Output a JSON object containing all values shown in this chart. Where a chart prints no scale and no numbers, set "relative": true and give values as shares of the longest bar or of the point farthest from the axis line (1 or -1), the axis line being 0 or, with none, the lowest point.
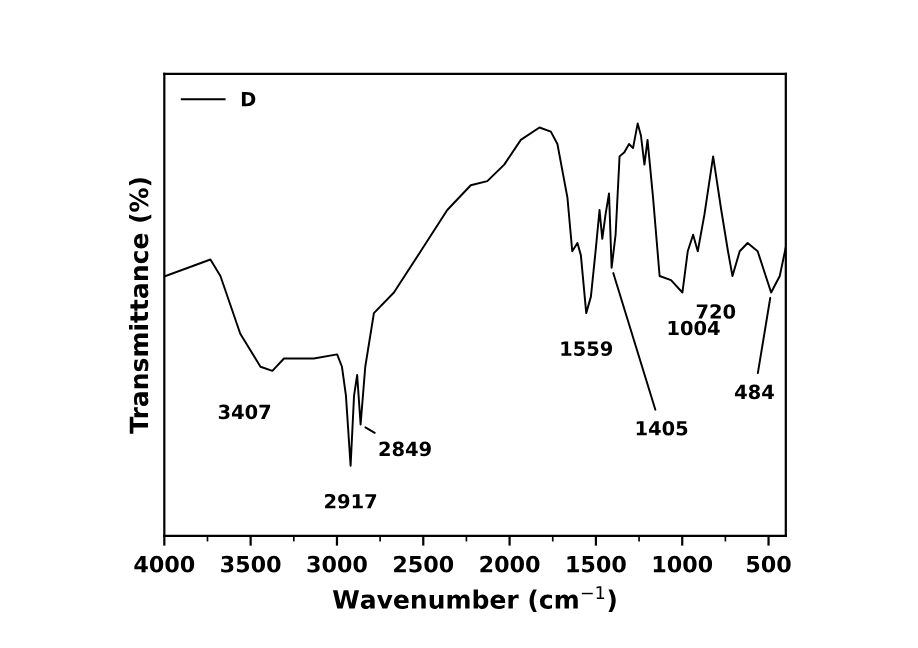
{
  "chart_data": {
    "type": "line",
    "relative": true,
    "xlabel": "Wavenumber (cm$^{−1}$)",
    "ylabel": "Transmittance (%)",
    "xlim": [
      4000,
      400
    ],
    "xticks": [
      4000,
      3500,
      3000,
      2500,
      2000,
      1500,
      1000,
      500
    ],
    "tick_labels": "x",
    "legend": "top left",
    "grid": false,
    "marker": "none",
    "line_style": "solid",
    "series": [
      {
        "name": "D",
        "color": "#000000",
        "x": [
          3992,
          3733,
          3675,
          3560,
          3443,
          3374,
          3307,
          3134,
          2999,
          2971,
          2948,
          2921,
          2901,
          2883,
          2863,
          2836,
          2786,
          2670,
          2515,
          2361,
          2225,
          2129,
          2031,
          1935,
          1827,
          1761,
          1723,
          1665,
          1637,
          1607,
          1587,
          1556,
          1529,
          1502,
          1479,
          1463,
          1444,
          1424,
          1409,
          1386,
          1363,
          1335,
          1308,
          1285,
          1258,
          1239,
          1219,
          1201,
          1169,
          1131,
          1065,
          999,
          968,
          937,
          910,
          871,
          821,
          774,
          735,
          709,
          667,
          621,
          563,
          485,
          435,
          400
        ],
        "values": [
          0.63,
          0.67,
          0.63,
          0.49,
          0.41,
          0.4,
          0.43,
          0.43,
          0.44,
          0.41,
          0.34,
          0.17,
          0.34,
          0.39,
          0.27,
          0.41,
          0.54,
          0.59,
          0.69,
          0.79,
          0.85,
          0.86,
          0.9,
          0.96,
          0.99,
          0.98,
          0.95,
          0.82,
          0.69,
          0.71,
          0.68,
          0.54,
          0.58,
          0.69,
          0.79,
          0.72,
          0.78,
          0.83,
          0.65,
          0.73,
          0.92,
          0.93,
          0.95,
          0.94,
          1.0,
          0.97,
          0.9,
          0.96,
          0.82,
          0.63,
          0.62,
          0.59,
          0.69,
          0.73,
          0.69,
          0.78,
          0.92,
          0.79,
          0.69,
          0.63,
          0.69,
          0.71,
          0.69,
          0.59,
          0.63,
          0.7
        ]
      }
    ],
    "annotations": [
      {
        "text": "3407",
        "x": 3374,
        "y": 0.4
      },
      {
        "text": "2917",
        "x": 2921,
        "y": 0.17
      },
      {
        "text": "2849",
        "x": 2863,
        "y": 0.27
      },
      {
        "text": "1559",
        "x": 1556,
        "y": 0.54
      },
      {
        "text": "1405",
        "x": 1409,
        "y": 0.65
      },
      {
        "text": "1004",
        "x": 999,
        "y": 0.59
      },
      {
        "text": "720",
        "x": 709,
        "y": 0.63
      },
      {
        "text": "484",
        "x": 485,
        "y": 0.59
      }
    ]
  }
}
